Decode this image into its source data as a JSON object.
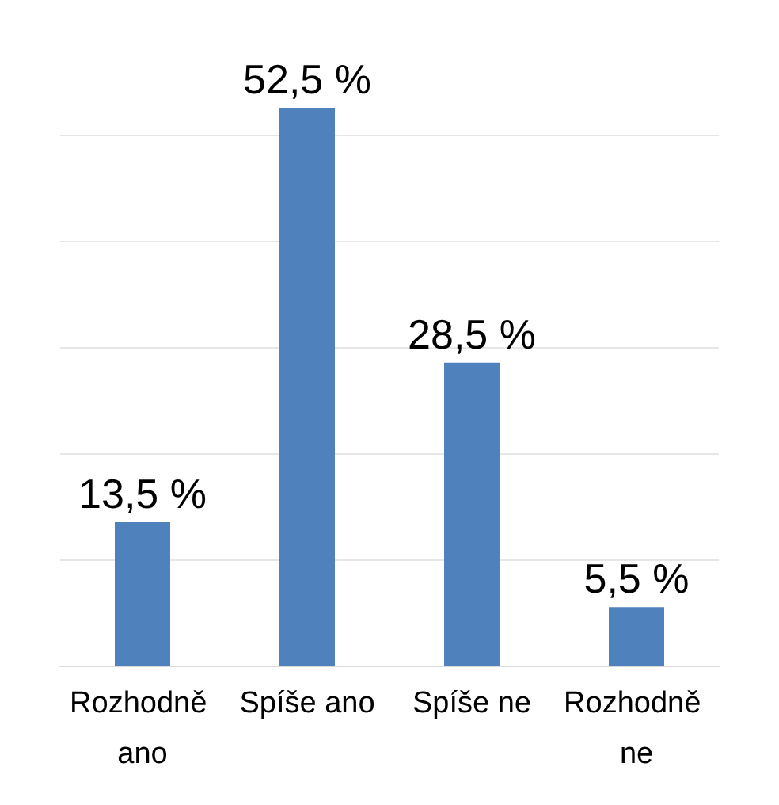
{
  "chart_data": {
    "type": "bar",
    "categories": [
      "Rozhodně ano",
      "Spíše ano",
      "Spíše ne",
      "Rozhodně ne"
    ],
    "values": [
      13.5,
      52.5,
      28.5,
      5.5
    ],
    "value_labels": [
      "13,5 %",
      "52,5 %",
      "28,5 %",
      "5,5 %"
    ],
    "color": "#4f81bd",
    "ylim": [
      0,
      52.5
    ],
    "yticks": [
      {
        "value": 0,
        "label": null
      },
      {
        "value": 10,
        "label": null
      },
      {
        "value": 20,
        "label": null
      },
      {
        "value": 30,
        "label": null
      },
      {
        "value": 40,
        "label": null
      },
      {
        "value": 50,
        "label": null
      }
    ],
    "grid": "y",
    "tick_labels": "x"
  }
}
